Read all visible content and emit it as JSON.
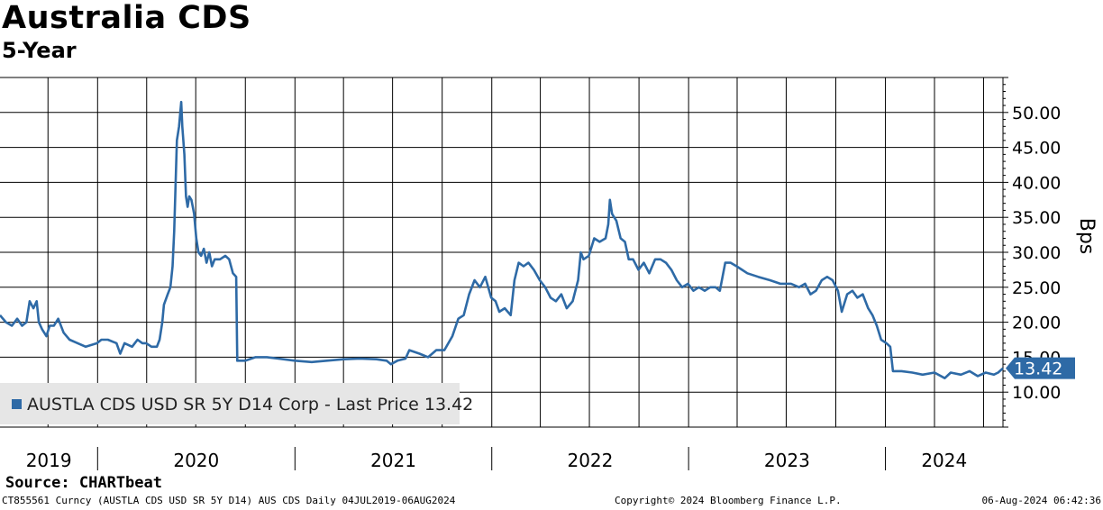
{
  "title": "Australia CDS",
  "subtitle": "5-Year",
  "source": "Source: CHARTbeat",
  "footer": {
    "left": "CT855561 Curncy (AUSTLA CDS USD SR 5Y D14) AUS CDS  Daily 04JUL2019-06AUG2024",
    "center": "Copyright© 2024 Bloomberg Finance L.P.",
    "right": "06-Aug-2024 06:42:36"
  },
  "colors": {
    "line": "#2e6aa6",
    "legend_bg": "#e6e6e6",
    "grid": "#000000"
  },
  "chart_data": {
    "type": "line",
    "ylabel": "Bps",
    "y_ticks": [
      "10.00",
      "15.00",
      "20.00",
      "25.00",
      "30.00",
      "35.00",
      "40.00",
      "45.00",
      "50.00"
    ],
    "ylim": [
      5,
      55
    ],
    "x_range": [
      "2019-07-04",
      "2024-08-06"
    ],
    "year_labels": [
      "2019",
      "2020",
      "2021",
      "2022",
      "2023",
      "2024"
    ],
    "legend": "AUSTLA CDS USD SR 5Y D14 Corp - Last Price 13.42",
    "last_value_label": "13.42",
    "grid": true,
    "series": [
      {
        "name": "AUSTLA CDS USD SR 5Y D14 Corp - Last Price",
        "points": [
          [
            "2019-07-04",
            21.0
          ],
          [
            "2019-07-15",
            20.0
          ],
          [
            "2019-07-26",
            19.5
          ],
          [
            "2019-08-05",
            20.5
          ],
          [
            "2019-08-14",
            19.5
          ],
          [
            "2019-08-22",
            20.0
          ],
          [
            "2019-08-28",
            23.0
          ],
          [
            "2019-09-04",
            22.0
          ],
          [
            "2019-09-10",
            23.0
          ],
          [
            "2019-09-14",
            20.0
          ],
          [
            "2019-09-20",
            19.0
          ],
          [
            "2019-09-28",
            18.0
          ],
          [
            "2019-10-04",
            19.5
          ],
          [
            "2019-10-12",
            19.5
          ],
          [
            "2019-10-20",
            20.5
          ],
          [
            "2019-10-30",
            18.5
          ],
          [
            "2019-11-10",
            17.5
          ],
          [
            "2019-11-25",
            17.0
          ],
          [
            "2019-12-10",
            16.5
          ],
          [
            "2019-12-31",
            17.0
          ],
          [
            "2020-01-08",
            17.5
          ],
          [
            "2020-01-20",
            17.5
          ],
          [
            "2020-02-05",
            17.0
          ],
          [
            "2020-02-12",
            15.5
          ],
          [
            "2020-02-20",
            17.0
          ],
          [
            "2020-03-05",
            16.5
          ],
          [
            "2020-03-15",
            17.5
          ],
          [
            "2020-03-24",
            17.0
          ],
          [
            "2020-03-31",
            17.0
          ],
          [
            "2020-04-10",
            16.5
          ],
          [
            "2020-04-20",
            16.5
          ],
          [
            "2020-04-25",
            17.5
          ],
          [
            "2020-04-30",
            20.0
          ],
          [
            "2020-05-03",
            22.5
          ],
          [
            "2020-05-10",
            24.0
          ],
          [
            "2020-05-15",
            25.0
          ],
          [
            "2020-05-19",
            28.0
          ],
          [
            "2020-05-22",
            33.0
          ],
          [
            "2020-05-27",
            46.0
          ],
          [
            "2020-05-31",
            48.0
          ],
          [
            "2020-06-04",
            51.5
          ],
          [
            "2020-06-06",
            48.0
          ],
          [
            "2020-06-10",
            44.0
          ],
          [
            "2020-06-13",
            38.0
          ],
          [
            "2020-06-16",
            36.5
          ],
          [
            "2020-06-19",
            38.0
          ],
          [
            "2020-06-23",
            37.5
          ],
          [
            "2020-06-28",
            35.5
          ],
          [
            "2020-07-02",
            32.0
          ],
          [
            "2020-07-06",
            30.0
          ],
          [
            "2020-07-11",
            29.5
          ],
          [
            "2020-07-16",
            30.5
          ],
          [
            "2020-07-21",
            28.5
          ],
          [
            "2020-07-26",
            30.0
          ],
          [
            "2020-07-31",
            28.0
          ],
          [
            "2020-08-05",
            29.0
          ],
          [
            "2020-08-15",
            29.0
          ],
          [
            "2020-08-25",
            29.5
          ],
          [
            "2020-09-01",
            29.0
          ],
          [
            "2020-09-08",
            27.0
          ],
          [
            "2020-09-14",
            26.5
          ],
          [
            "2020-09-16",
            14.5
          ],
          [
            "2020-10-01",
            14.5
          ],
          [
            "2020-10-20",
            15.0
          ],
          [
            "2020-11-10",
            15.0
          ],
          [
            "2020-12-01",
            14.8
          ],
          [
            "2021-01-01",
            14.5
          ],
          [
            "2021-02-01",
            14.3
          ],
          [
            "2021-03-01",
            14.5
          ],
          [
            "2021-04-01",
            14.7
          ],
          [
            "2021-05-01",
            14.8
          ],
          [
            "2021-06-01",
            14.7
          ],
          [
            "2021-06-20",
            14.5
          ],
          [
            "2021-06-28",
            14.0
          ],
          [
            "2021-07-10",
            14.5
          ],
          [
            "2021-07-25",
            14.8
          ],
          [
            "2021-08-01",
            16.0
          ],
          [
            "2021-08-20",
            15.5
          ],
          [
            "2021-09-05",
            15.0
          ],
          [
            "2021-09-20",
            16.0
          ],
          [
            "2021-10-05",
            16.0
          ],
          [
            "2021-10-20",
            18.0
          ],
          [
            "2021-10-31",
            20.5
          ],
          [
            "2021-11-10",
            21.0
          ],
          [
            "2021-11-20",
            24.0
          ],
          [
            "2021-11-30",
            26.0
          ],
          [
            "2021-12-10",
            25.0
          ],
          [
            "2021-12-20",
            26.5
          ],
          [
            "2021-12-31",
            23.5
          ],
          [
            "2022-01-08",
            23.0
          ],
          [
            "2022-01-15",
            21.5
          ],
          [
            "2022-01-25",
            22.0
          ],
          [
            "2022-02-05",
            21.0
          ],
          [
            "2022-02-12",
            26.0
          ],
          [
            "2022-02-20",
            28.5
          ],
          [
            "2022-03-01",
            28.0
          ],
          [
            "2022-03-10",
            28.5
          ],
          [
            "2022-03-20",
            27.5
          ],
          [
            "2022-03-31",
            26.0
          ],
          [
            "2022-04-10",
            25.0
          ],
          [
            "2022-04-20",
            23.5
          ],
          [
            "2022-04-30",
            23.0
          ],
          [
            "2022-05-10",
            24.0
          ],
          [
            "2022-05-20",
            22.0
          ],
          [
            "2022-05-31",
            23.0
          ],
          [
            "2022-06-10",
            26.0
          ],
          [
            "2022-06-15",
            30.0
          ],
          [
            "2022-06-20",
            29.0
          ],
          [
            "2022-06-30",
            29.5
          ],
          [
            "2022-07-10",
            32.0
          ],
          [
            "2022-07-20",
            31.5
          ],
          [
            "2022-07-31",
            32.0
          ],
          [
            "2022-08-05",
            34.0
          ],
          [
            "2022-08-08",
            37.5
          ],
          [
            "2022-08-12",
            35.5
          ],
          [
            "2022-08-20",
            34.5
          ],
          [
            "2022-08-28",
            32.0
          ],
          [
            "2022-09-05",
            31.5
          ],
          [
            "2022-09-12",
            29.0
          ],
          [
            "2022-09-20",
            29.0
          ],
          [
            "2022-09-30",
            27.5
          ],
          [
            "2022-10-10",
            28.5
          ],
          [
            "2022-10-20",
            27.0
          ],
          [
            "2022-10-31",
            29.0
          ],
          [
            "2022-11-10",
            29.0
          ],
          [
            "2022-11-20",
            28.5
          ],
          [
            "2022-11-30",
            27.5
          ],
          [
            "2022-12-10",
            26.0
          ],
          [
            "2022-12-20",
            25.0
          ],
          [
            "2022-12-31",
            25.5
          ],
          [
            "2023-01-10",
            24.5
          ],
          [
            "2023-01-20",
            25.0
          ],
          [
            "2023-01-31",
            24.5
          ],
          [
            "2023-02-10",
            25.0
          ],
          [
            "2023-02-20",
            25.0
          ],
          [
            "2023-02-28",
            24.5
          ],
          [
            "2023-03-10",
            28.5
          ],
          [
            "2023-03-20",
            28.5
          ],
          [
            "2023-03-31",
            28.0
          ],
          [
            "2023-04-10",
            27.5
          ],
          [
            "2023-04-20",
            27.0
          ],
          [
            "2023-05-10",
            26.5
          ],
          [
            "2023-06-01",
            26.0
          ],
          [
            "2023-06-20",
            25.5
          ],
          [
            "2023-07-10",
            25.5
          ],
          [
            "2023-07-25",
            25.0
          ],
          [
            "2023-08-05",
            25.5
          ],
          [
            "2023-08-15",
            24.0
          ],
          [
            "2023-08-25",
            24.5
          ],
          [
            "2023-09-05",
            26.0
          ],
          [
            "2023-09-15",
            26.5
          ],
          [
            "2023-09-25",
            26.0
          ],
          [
            "2023-10-05",
            24.5
          ],
          [
            "2023-10-12",
            21.5
          ],
          [
            "2023-10-22",
            24.0
          ],
          [
            "2023-11-01",
            24.5
          ],
          [
            "2023-11-10",
            23.5
          ],
          [
            "2023-11-20",
            24.0
          ],
          [
            "2023-11-30",
            22.0
          ],
          [
            "2023-12-08",
            21.0
          ],
          [
            "2023-12-16",
            19.5
          ],
          [
            "2023-12-24",
            17.5
          ],
          [
            "2024-01-03",
            17.0
          ],
          [
            "2024-01-10",
            16.5
          ],
          [
            "2024-01-15",
            13.0
          ],
          [
            "2024-01-31",
            13.0
          ],
          [
            "2024-02-20",
            12.8
          ],
          [
            "2024-03-10",
            12.5
          ],
          [
            "2024-04-01",
            12.8
          ],
          [
            "2024-04-20",
            12.0
          ],
          [
            "2024-05-01",
            12.8
          ],
          [
            "2024-05-20",
            12.5
          ],
          [
            "2024-06-05",
            13.0
          ],
          [
            "2024-06-20",
            12.3
          ],
          [
            "2024-07-05",
            12.8
          ],
          [
            "2024-07-20",
            12.5
          ],
          [
            "2024-07-28",
            12.8
          ],
          [
            "2024-08-06",
            13.42
          ]
        ]
      }
    ]
  }
}
